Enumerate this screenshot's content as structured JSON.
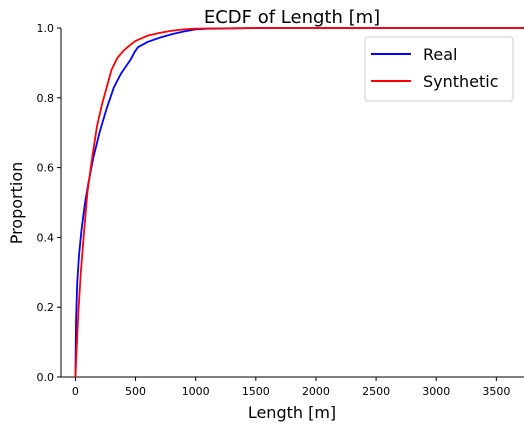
{
  "chart_data": {
    "type": "line",
    "title": "ECDF of Length [m]",
    "xlabel": "Length [m]",
    "ylabel": "Proportion",
    "xlim": [
      -120,
      3730
    ],
    "ylim": [
      0,
      1.0
    ],
    "xticks": [
      "0",
      "500",
      "1000",
      "1500",
      "2000",
      "2500",
      "3000",
      "3500"
    ],
    "yticks": [
      "0.0",
      "0.2",
      "0.4",
      "0.6",
      "0.8",
      "1.0"
    ],
    "grid": false,
    "legend_position": "top-right",
    "series": [
      {
        "name": "Real",
        "color": "#0000ff",
        "points": [
          [
            0,
            0
          ],
          [
            5,
            0.16
          ],
          [
            15,
            0.27
          ],
          [
            30,
            0.35
          ],
          [
            50,
            0.42
          ],
          [
            80,
            0.5
          ],
          [
            110,
            0.56
          ],
          [
            150,
            0.63
          ],
          [
            200,
            0.7
          ],
          [
            260,
            0.77
          ],
          [
            320,
            0.83
          ],
          [
            380,
            0.87
          ],
          [
            430,
            0.895
          ],
          [
            460,
            0.91
          ],
          [
            490,
            0.93
          ],
          [
            520,
            0.945
          ],
          [
            600,
            0.96
          ],
          [
            700,
            0.972
          ],
          [
            800,
            0.982
          ],
          [
            900,
            0.99
          ],
          [
            1000,
            0.996
          ],
          [
            1100,
            0.998
          ],
          [
            1300,
            0.999
          ],
          [
            1600,
            1.0
          ],
          [
            3730,
            1.0
          ]
        ]
      },
      {
        "name": "Synthetic",
        "color": "#ff0000",
        "points": [
          [
            0,
            0
          ],
          [
            10,
            0.08
          ],
          [
            25,
            0.19
          ],
          [
            45,
            0.3
          ],
          [
            70,
            0.41
          ],
          [
            100,
            0.53
          ],
          [
            140,
            0.63
          ],
          [
            180,
            0.72
          ],
          [
            220,
            0.78
          ],
          [
            260,
            0.83
          ],
          [
            300,
            0.88
          ],
          [
            350,
            0.915
          ],
          [
            400,
            0.935
          ],
          [
            450,
            0.95
          ],
          [
            500,
            0.963
          ],
          [
            600,
            0.978
          ],
          [
            700,
            0.986
          ],
          [
            800,
            0.992
          ],
          [
            900,
            0.996
          ],
          [
            1000,
            0.998
          ],
          [
            1200,
            0.999
          ],
          [
            1500,
            1.0
          ],
          [
            3730,
            1.0
          ]
        ]
      }
    ]
  }
}
